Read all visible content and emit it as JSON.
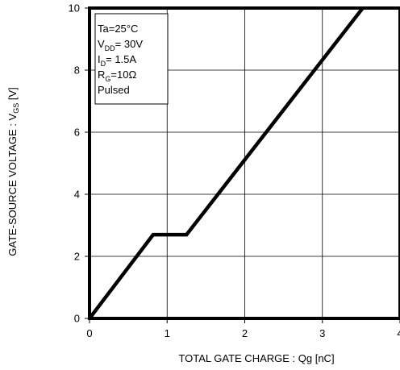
{
  "chart_data": {
    "type": "line",
    "xlabel": "TOTAL GATE CHARGE : Qg  [nC]",
    "ylabel": {
      "main": "GATE-SOURCE VOLTAGE : V",
      "sub": "GS",
      "unit": " [V]"
    },
    "xlim": [
      0,
      4
    ],
    "ylim": [
      0,
      10
    ],
    "x_ticks": [
      "0",
      "1",
      "2",
      "3",
      "4"
    ],
    "y_ticks": [
      "0",
      "2",
      "4",
      "6",
      "8",
      "10"
    ],
    "grid": true,
    "series": [
      {
        "points": [
          {
            "x": 0,
            "y": 0
          },
          {
            "x": 0.82,
            "y": 2.7
          },
          {
            "x": 1.25,
            "y": 2.7
          },
          {
            "x": 3.52,
            "y": 10
          }
        ]
      }
    ],
    "conditions": [
      {
        "main": "Ta=25°C",
        "sub": "",
        "rest": ""
      },
      {
        "main": "V",
        "sub": "DD",
        "rest": "= 30V"
      },
      {
        "main": "I",
        "sub": "D",
        "rest": "= 1.5A"
      },
      {
        "main": "R",
        "sub": "G",
        "rest": "=10Ω"
      },
      {
        "main": "Pulsed",
        "sub": "",
        "rest": ""
      }
    ]
  }
}
